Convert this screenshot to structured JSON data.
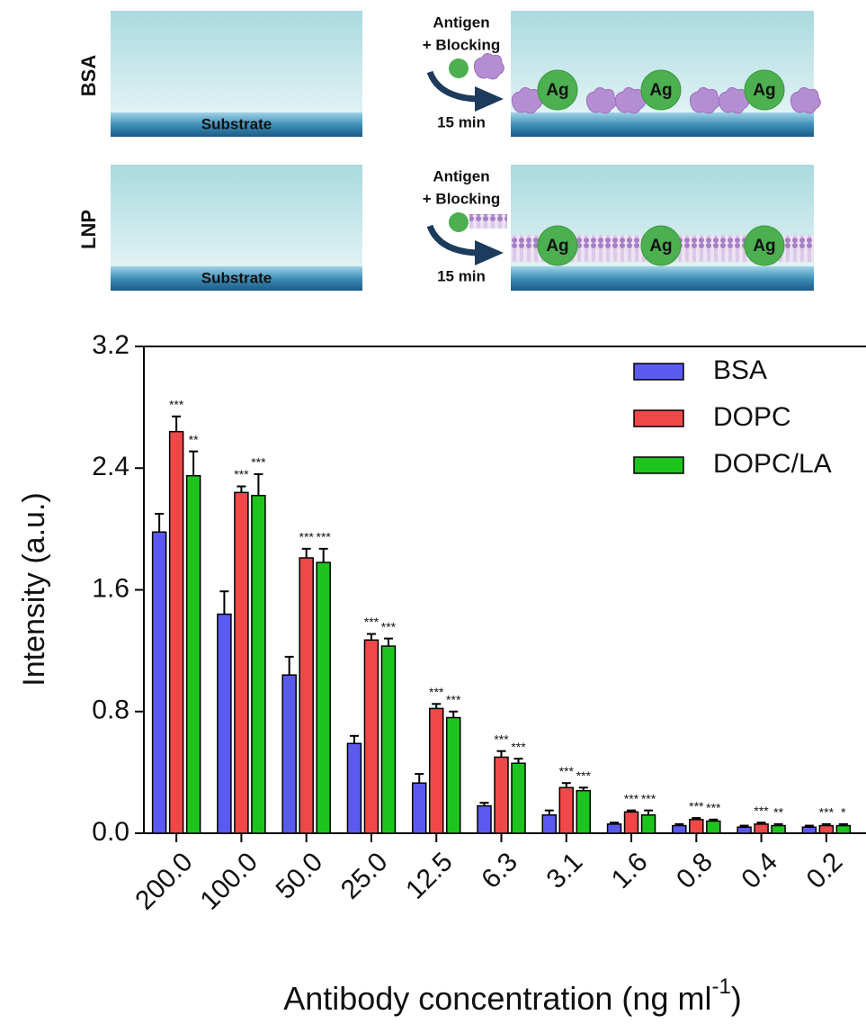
{
  "schematic": {
    "rows": [
      {
        "label": "BSA",
        "substrate": "Substrate",
        "step": [
          "Antigen",
          "+ Blocking"
        ],
        "time": "15 min",
        "antigen": "Ag"
      },
      {
        "label": "LNP",
        "substrate": "Substrate",
        "step": [
          "Antigen",
          "+ Blocking"
        ],
        "time": "15 min",
        "antigen": "Ag"
      }
    ]
  },
  "chart_data": {
    "type": "bar",
    "y_label": "Intensity  (a.u.)",
    "x_label": {
      "text": "Antibody concentration (ng ml",
      "superscript": "-1",
      "suffix": ")"
    },
    "categories": [
      "200.0",
      "100.0",
      "50.0",
      "25.0",
      "12.5",
      "6.3",
      "3.1",
      "1.6",
      "0.8",
      "0.4",
      "0.2"
    ],
    "series": [
      {
        "name": "BSA",
        "color": "#5a5af0",
        "values": [
          1.98,
          1.44,
          1.04,
          0.59,
          0.33,
          0.18,
          0.12,
          0.06,
          0.05,
          0.04,
          0.04
        ],
        "errors": [
          0.12,
          0.15,
          0.12,
          0.05,
          0.06,
          0.02,
          0.03,
          0.01,
          0.01,
          0.01,
          0.01
        ]
      },
      {
        "name": "DOPC",
        "color": "#f04848",
        "values": [
          2.64,
          2.24,
          1.81,
          1.27,
          0.82,
          0.5,
          0.3,
          0.14,
          0.09,
          0.06,
          0.05
        ],
        "errors": [
          0.1,
          0.04,
          0.06,
          0.04,
          0.03,
          0.04,
          0.03,
          0.01,
          0.01,
          0.01,
          0.01
        ],
        "significance": [
          "***",
          "***",
          "***",
          "***",
          "***",
          "***",
          "***",
          "***",
          "***",
          "***",
          "***"
        ]
      },
      {
        "name": "DOPC/LA",
        "color": "#1ec41e",
        "values": [
          2.35,
          2.22,
          1.78,
          1.23,
          0.76,
          0.46,
          0.28,
          0.12,
          0.08,
          0.05,
          0.05
        ],
        "errors": [
          0.16,
          0.14,
          0.09,
          0.05,
          0.04,
          0.03,
          0.02,
          0.03,
          0.01,
          0.01,
          0.01
        ],
        "significance": [
          "**",
          "***",
          "***",
          "***",
          "***",
          "***",
          "***",
          "***",
          "***",
          "**",
          "*"
        ]
      }
    ],
    "ylim": [
      0,
      3.2
    ],
    "yticks": [
      {
        "value": 0,
        "label": "0.0"
      },
      0.8,
      1.6,
      2.4,
      3.2
    ],
    "legend": "upper right"
  }
}
